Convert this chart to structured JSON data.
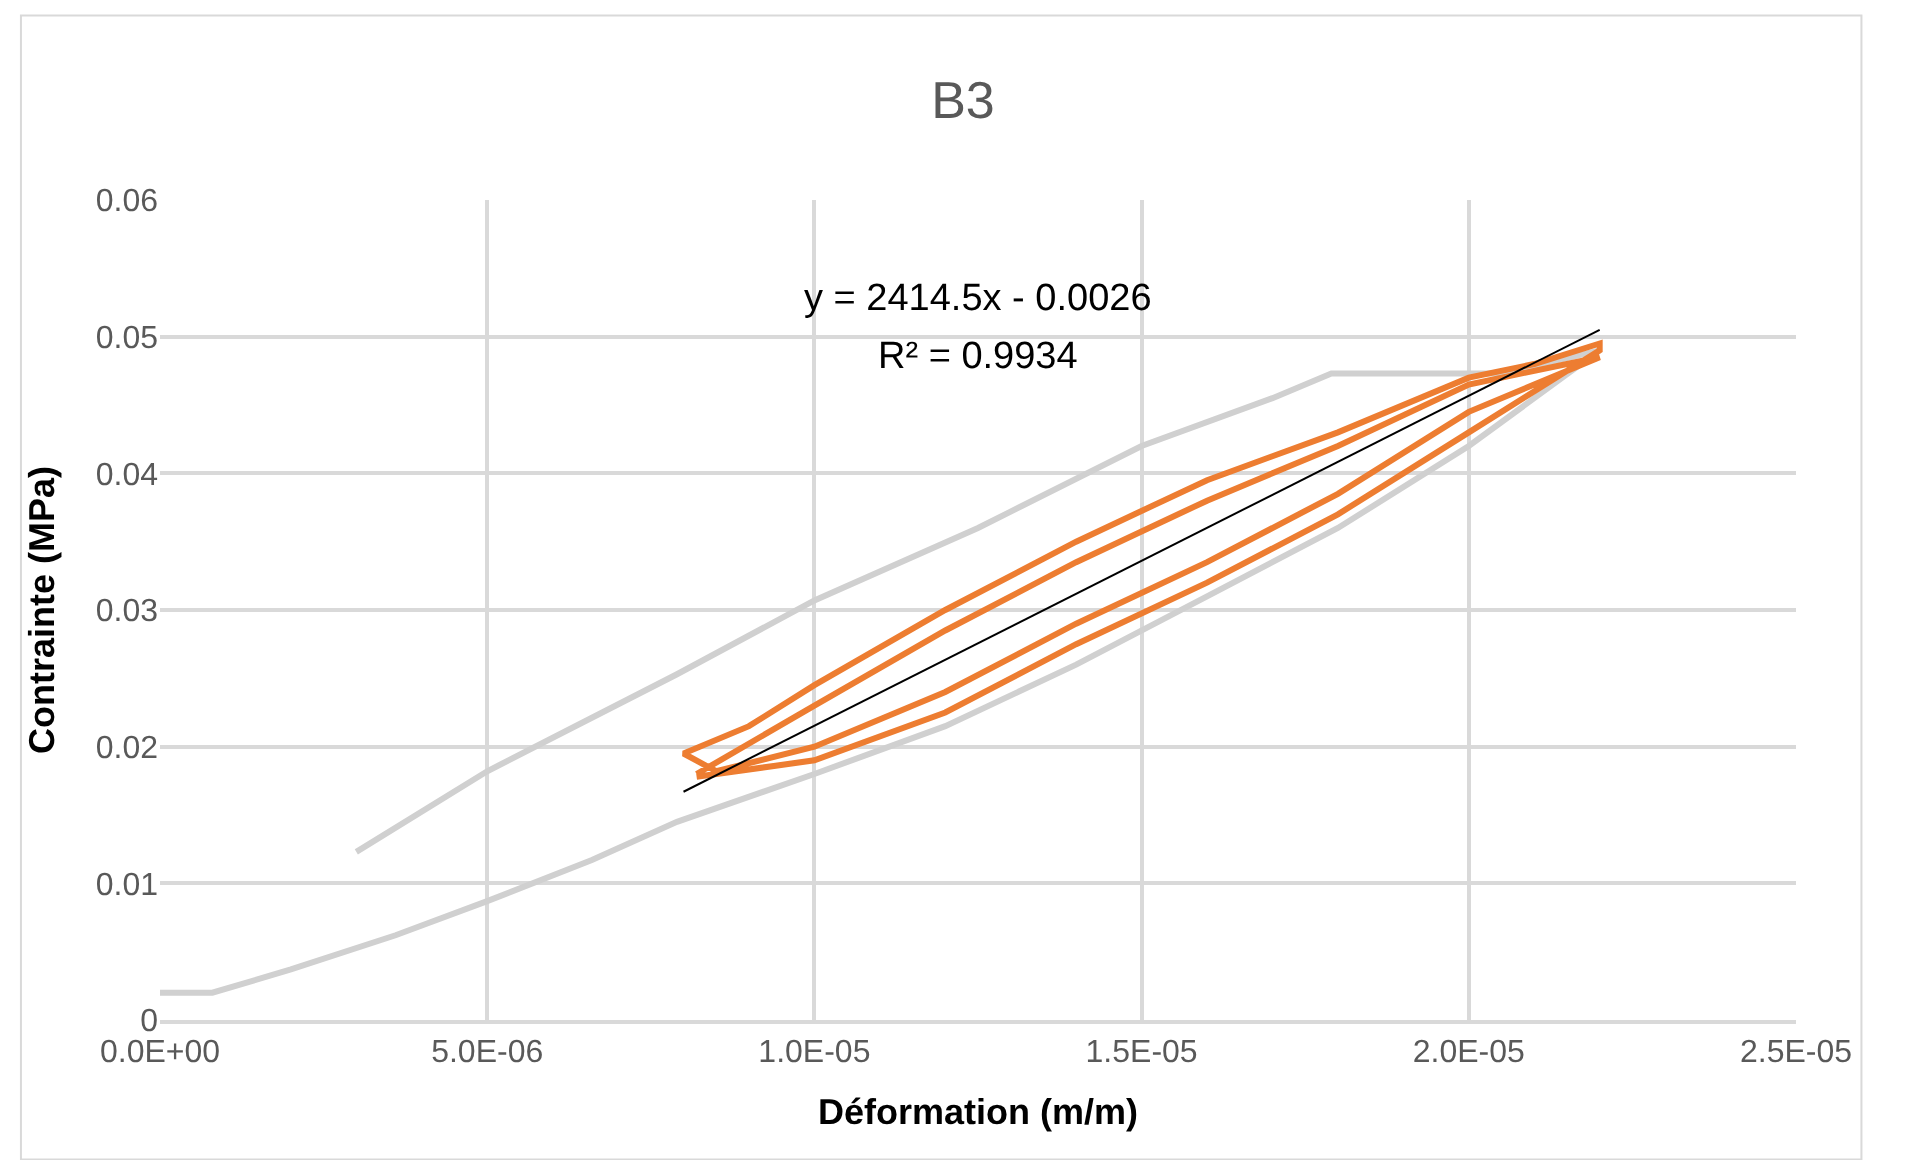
{
  "chart_data": {
    "type": "line",
    "title": "B3",
    "xlabel": "Déformation (m/m)",
    "ylabel": "Contrainte (MPa)",
    "xlim": [
      0,
      2.5e-05
    ],
    "ylim": [
      0,
      0.06
    ],
    "xticks": [
      {
        "value": 0,
        "label": "0.0E+00"
      },
      {
        "value": 5e-06,
        "label": "5.0E-06"
      },
      {
        "value": 1e-05,
        "label": "1.0E-05"
      },
      {
        "value": 1.5e-05,
        "label": "1.5E-05"
      },
      {
        "value": 2e-05,
        "label": "2.0E-05"
      },
      {
        "value": 2.5e-05,
        "label": "2.5E-05"
      }
    ],
    "yticks": [
      0,
      0.01,
      0.02,
      0.03,
      0.04,
      0.05,
      0.06
    ],
    "grid": true,
    "marker": "none",
    "line_style": "solid",
    "annotations": [
      "y = 2414.5x - 0.0026",
      "R² = 0.9934"
    ],
    "series": [
      {
        "color": "#d0d0d0",
        "x": [
          0.0,
          8e-07,
          2e-06,
          3.6e-06,
          5e-06,
          6.6e-06,
          7.9e-06,
          1e-05,
          1.2e-05,
          1.4e-05,
          1.6e-05,
          1.8e-05,
          2e-05,
          2.2e-05,
          2.05e-05,
          1.79e-05,
          1.7e-05,
          1.5e-05,
          1.25e-05,
          1e-05,
          7.9e-06,
          5e-06,
          3e-06
        ],
        "values": [
          0.002,
          0.002,
          0.0037,
          0.0062,
          0.0087,
          0.0117,
          0.0145,
          0.018,
          0.0215,
          0.026,
          0.031,
          0.036,
          0.042,
          0.049,
          0.0473,
          0.0473,
          0.0455,
          0.042,
          0.036,
          0.0307,
          0.0253,
          0.0182,
          0.0123
        ]
      },
      {
        "color": "#ed7d31",
        "x": [
          8.2e-06,
          1e-05,
          1.2e-05,
          1.4e-05,
          1.6e-05,
          1.8e-05,
          2e-05,
          2.2e-05,
          2.2e-05,
          2.1e-05,
          2e-05,
          1.8e-05,
          1.6e-05,
          1.4e-05,
          1.2e-05,
          1e-05,
          9e-06,
          8e-06,
          8.5e-06,
          1e-05,
          1.2e-05,
          1.4e-05,
          1.6e-05,
          1.8e-05,
          2e-05,
          2.2e-05,
          2.15e-05,
          2e-05,
          1.8e-05,
          1.6e-05,
          1.4e-05,
          1.2e-05,
          1e-05,
          8.2e-06
        ],
        "values": [
          0.0178,
          0.019,
          0.0225,
          0.0275,
          0.032,
          0.037,
          0.043,
          0.049,
          0.0495,
          0.048,
          0.047,
          0.043,
          0.0395,
          0.035,
          0.03,
          0.0245,
          0.0215,
          0.0195,
          0.0182,
          0.02,
          0.024,
          0.029,
          0.0335,
          0.0385,
          0.0445,
          0.0485,
          0.048,
          0.0465,
          0.042,
          0.038,
          0.0335,
          0.0285,
          0.023,
          0.018
        ]
      },
      {
        "color": "#000000",
        "x": [
          8e-06,
          2.2e-05
        ],
        "values": [
          0.0167,
          0.0505
        ]
      }
    ]
  }
}
